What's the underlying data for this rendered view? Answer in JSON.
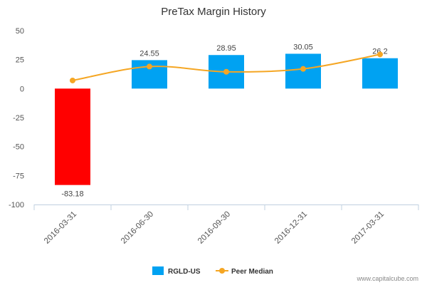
{
  "chart_data": {
    "type": "bar",
    "title": "PreTax Margin History",
    "categories": [
      "2016-03-31",
      "2016-06-30",
      "2016-09-30",
      "2016-12-31",
      "2017-03-31"
    ],
    "series": [
      {
        "name": "RGLD-US",
        "type": "bar",
        "values": [
          -83.18,
          24.55,
          28.95,
          30.05,
          26.2
        ],
        "data_labels": [
          "-83.18",
          "24.55",
          "28.95",
          "30.05",
          "26.2"
        ],
        "color": "#00a2f2",
        "negative_color": "#ff0000"
      },
      {
        "name": "Peer Median",
        "type": "line",
        "values": [
          7,
          19,
          14.5,
          17,
          29.5
        ],
        "color": "#f5a623"
      }
    ],
    "yticks": [
      50,
      25,
      0,
      -25,
      -50,
      -75,
      -100
    ],
    "ylim": [
      -100,
      50
    ],
    "grid": false,
    "legend": "bottom-center"
  },
  "credit": "www.capitalcube.com"
}
